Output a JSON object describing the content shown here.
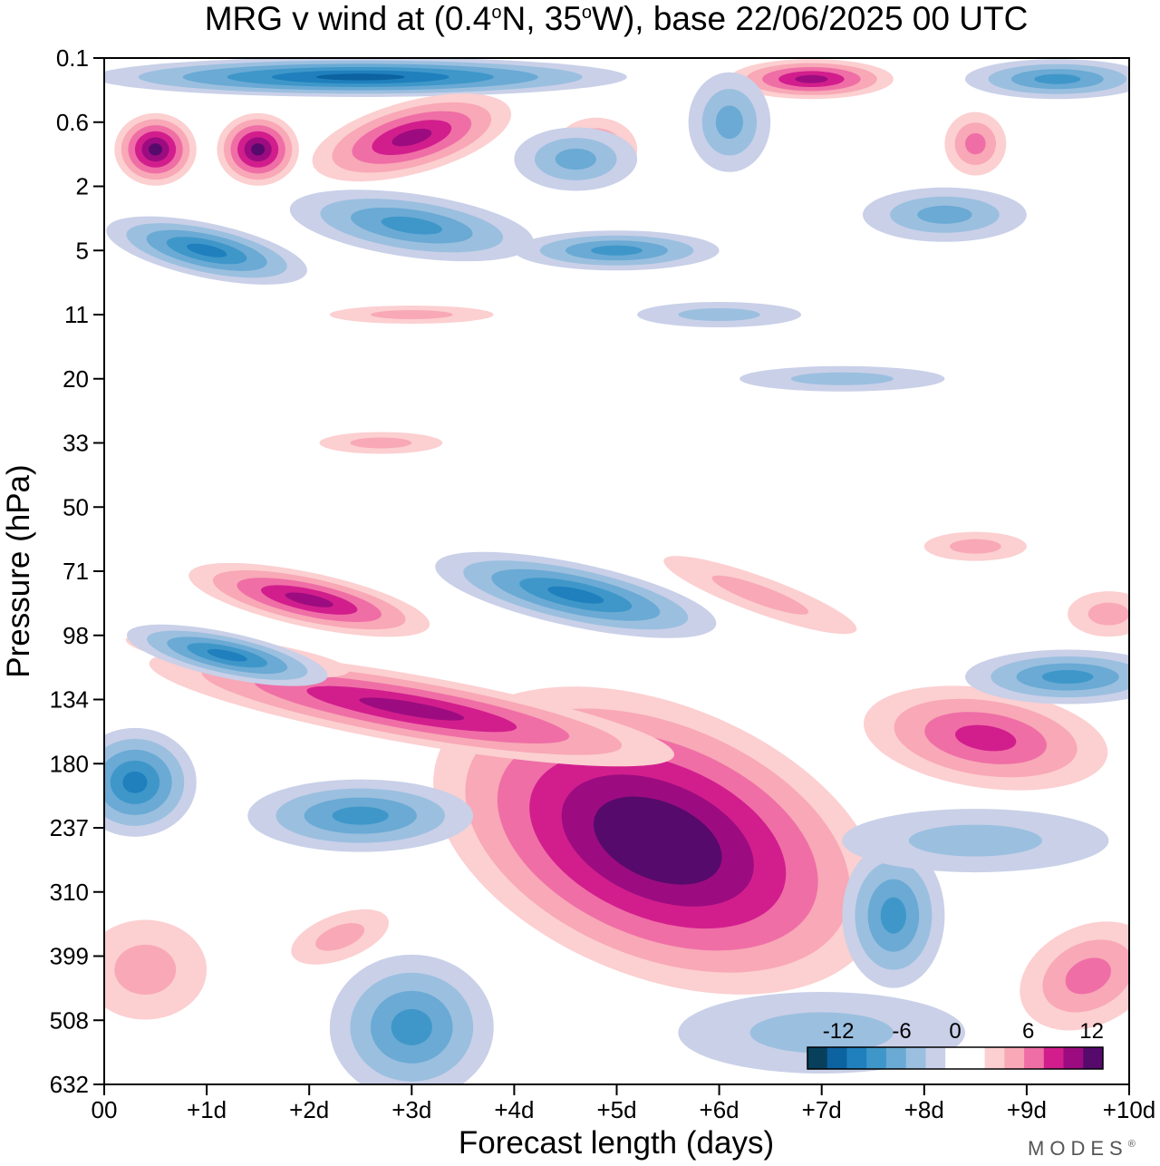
{
  "chart_data": {
    "type": "heatmap",
    "title": "MRG v wind at (0.4°N, 35°W),  base 22/06/2025  00 UTC",
    "title_parts": {
      "prefix": "MRG v wind at (0.4",
      "deg1": "o",
      "mid": "N, 35",
      "deg2": "o",
      "suffix": "W),  base 22/06/2025  00 UTC"
    },
    "xlabel": "Forecast length (days)",
    "ylabel": "Pressure (hPa)",
    "x_ticks": [
      "00",
      "+1d",
      "+2d",
      "+3d",
      "+4d",
      "+5d",
      "+6d",
      "+7d",
      "+8d",
      "+9d",
      "+10d"
    ],
    "xlim_days": [
      0,
      10
    ],
    "y_ticks": [
      "0.1",
      "0.6",
      "2",
      "5",
      "11",
      "20",
      "33",
      "50",
      "71",
      "98",
      "134",
      "180",
      "237",
      "310",
      "399",
      "508",
      "632"
    ],
    "y_scale": "log-pressure (top at 0.1 hPa, bottom at 632 hPa)",
    "grid": false,
    "legend_position": "bottom-right",
    "colorbar": {
      "tick_labels": [
        "-12",
        "-6",
        "0",
        "6",
        "12"
      ],
      "tick_values": [
        -12,
        -6,
        0,
        6,
        12
      ],
      "levels": [
        -14,
        -12,
        -10,
        -8,
        -6,
        -4,
        -2,
        0,
        2,
        4,
        6,
        8,
        10,
        12,
        14
      ],
      "colors": [
        "#08405c",
        "#0d62a0",
        "#1f80bd",
        "#3f97c9",
        "#6aaad4",
        "#9bbfdf",
        "#c9d0e8",
        "#ffffff",
        "#ffffff",
        "#fccfd0",
        "#f8a8b6",
        "#ef6ea6",
        "#d21e8d",
        "#9c0c80",
        "#560a6c"
      ]
    },
    "features": [
      {
        "value": 14,
        "x_days": [
          4.5,
          6.3
        ],
        "p_hPa": [
          180,
          340
        ],
        "note": "max positive v"
      },
      {
        "value": 10,
        "x_days": [
          0.5,
          1.5
        ],
        "p_hPa": [
          0.6,
          2
        ]
      },
      {
        "value": 8,
        "x_days": [
          1.0,
          2.6
        ],
        "p_hPa": [
          71,
          98
        ]
      },
      {
        "value": 8,
        "x_days": [
          7.5,
          9.0
        ],
        "p_hPa": [
          134,
          180
        ]
      },
      {
        "value": -10,
        "x_days": [
          0.3,
          5.0
        ],
        "p_hPa": [
          0.1,
          0.6
        ]
      },
      {
        "value": -8,
        "x_days": [
          0.5,
          1.2
        ],
        "p_hPa": [
          98,
          134
        ]
      },
      {
        "value": -8,
        "x_days": [
          4.5,
          5.2
        ],
        "p_hPa": [
          71,
          98
        ]
      },
      {
        "value": -8,
        "x_days": [
          0,
          0.5
        ],
        "p_hPa": [
          134,
          237
        ]
      },
      {
        "value": -6,
        "x_days": [
          7.5,
          8.0
        ],
        "p_hPa": [
          310,
          450
        ]
      }
    ]
  },
  "brand": "MODES",
  "brand_mark": "®"
}
